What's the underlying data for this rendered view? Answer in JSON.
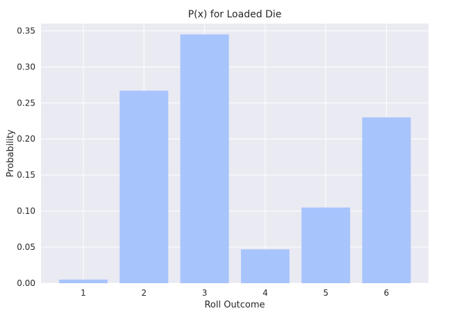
{
  "chart_data": {
    "type": "bar",
    "title": "P(x) for Loaded Die",
    "xlabel": "Roll Outcome",
    "ylabel": "Probability",
    "categories": [
      "1",
      "2",
      "3",
      "4",
      "5",
      "6"
    ],
    "values": [
      0.005,
      0.267,
      0.345,
      0.047,
      0.105,
      0.23
    ],
    "ylim": [
      0,
      0.36
    ],
    "yticks": [
      "0.00",
      "0.05",
      "0.10",
      "0.15",
      "0.20",
      "0.25",
      "0.30",
      "0.35"
    ],
    "grid": true,
    "colors": {
      "bar": "#a8c4fd",
      "plot_background": "#eaeaf2",
      "grid": "#ffffff"
    }
  }
}
